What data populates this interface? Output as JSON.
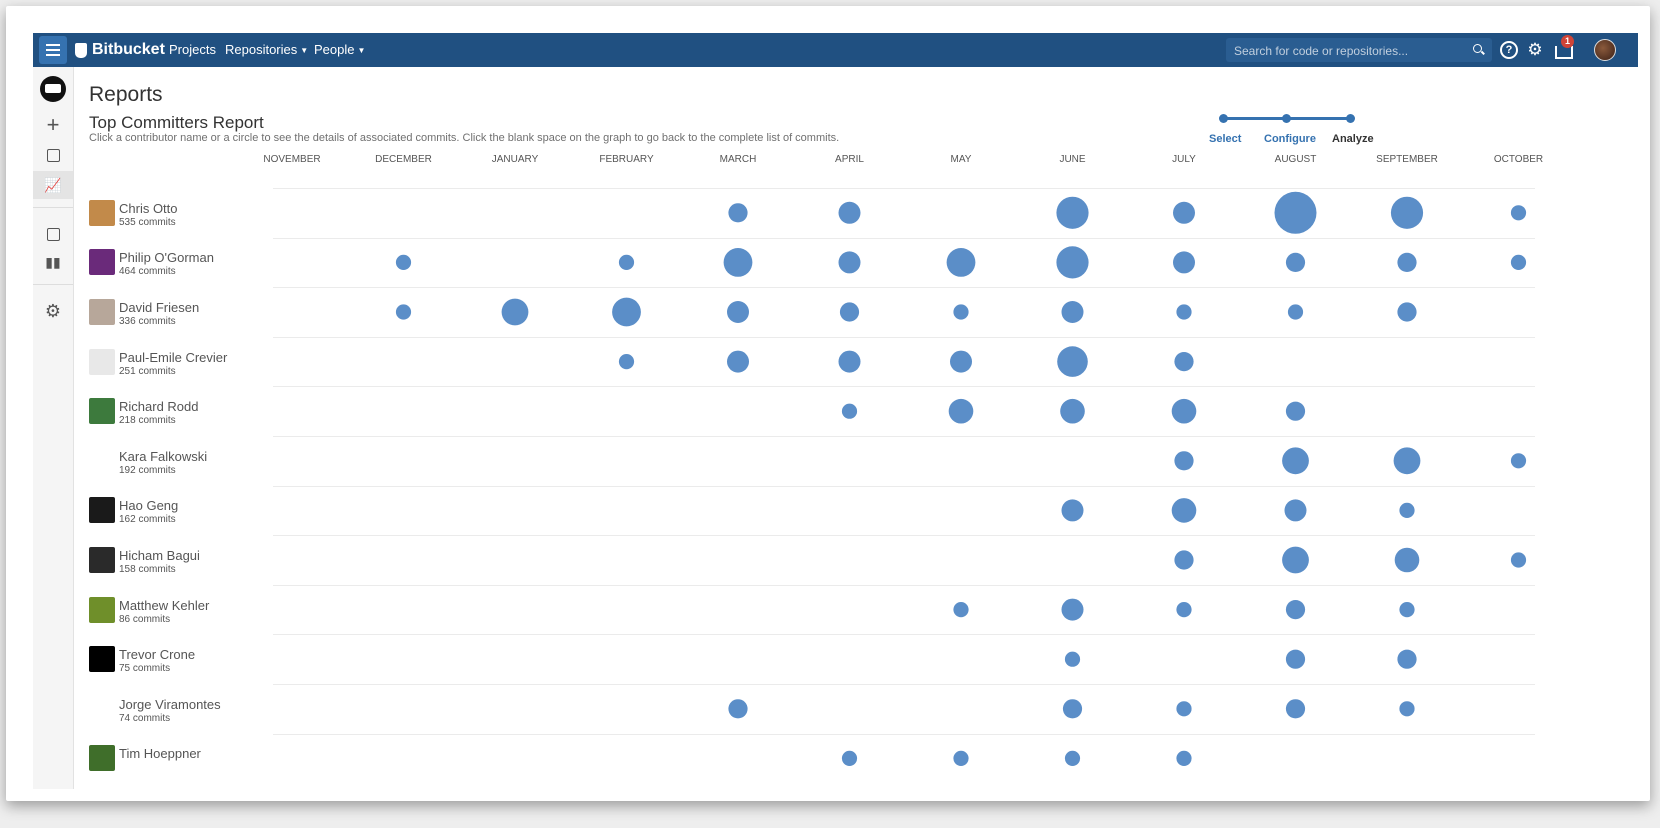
{
  "topbar": {
    "logo_text": "Bitbucket",
    "nav": {
      "projects": "Projects",
      "repositories": "Repositories",
      "people": "People"
    },
    "search_placeholder": "Search for code or repositories...",
    "notification_count": "1",
    "brand_color": "#205081"
  },
  "sidebar": {
    "items": [
      "repository-avatar",
      "create-icon",
      "pull-request-icon",
      "reports-icon",
      "document-icon",
      "bar-chart-icon",
      "settings-icon"
    ]
  },
  "page": {
    "heading": "Reports",
    "report_title": "Top Committers Report",
    "description": "Click a contributor name or a circle to see the details of associated commits. Click the blank space on the graph to go back to the complete list of commits."
  },
  "wizard": {
    "steps": [
      "Select",
      "Configure",
      "Analyze"
    ],
    "current": "Analyze"
  },
  "chart_data": {
    "type": "scatter",
    "bubble_color": "#5b8ec8",
    "months": [
      "NOVEMBER",
      "DECEMBER",
      "JANUARY",
      "FEBRUARY",
      "MARCH",
      "APRIL",
      "MAY",
      "JUNE",
      "JULY",
      "AUGUST",
      "SEPTEMBER",
      "OCTOBER"
    ],
    "contributors": [
      {
        "name": "Chris Otto",
        "commits_label": "535 commits",
        "avatar_color": "#c28a4a",
        "monthly": [
          0,
          0,
          0,
          0,
          2,
          3,
          0,
          8,
          3,
          15,
          8,
          1
        ]
      },
      {
        "name": "Philip O'Gorman",
        "commits_label": "464 commits",
        "avatar_color": "#6a2a7a",
        "monthly": [
          0,
          1,
          0,
          1,
          6,
          3,
          6,
          8,
          3,
          2,
          2,
          1
        ]
      },
      {
        "name": "David Friesen",
        "commits_label": "336 commits",
        "avatar_color": "#b7a79a",
        "monthly": [
          0,
          1,
          5,
          6,
          3,
          2,
          1,
          3,
          1,
          1,
          2,
          0
        ]
      },
      {
        "name": "Paul-Emile Crevier",
        "commits_label": "251 commits",
        "avatar_color": "#e8e8e8",
        "monthly": [
          0,
          0,
          0,
          1,
          3,
          3,
          3,
          7,
          2,
          0,
          0,
          0
        ]
      },
      {
        "name": "Richard Rodd",
        "commits_label": "218 commits",
        "avatar_color": "#3d7a3d",
        "monthly": [
          0,
          0,
          0,
          0,
          0,
          1,
          4,
          4,
          4,
          2,
          0,
          0
        ]
      },
      {
        "name": "Kara Falkowski",
        "commits_label": "192 commits",
        "avatar_color": "#ffffff",
        "monthly": [
          0,
          0,
          0,
          0,
          0,
          0,
          0,
          0,
          2,
          5,
          5,
          1
        ]
      },
      {
        "name": "Hao Geng",
        "commits_label": "162 commits",
        "avatar_color": "#1a1a1a",
        "monthly": [
          0,
          0,
          0,
          0,
          0,
          0,
          0,
          3,
          4,
          3,
          1,
          0
        ]
      },
      {
        "name": "Hicham Bagui",
        "commits_label": "158 commits",
        "avatar_color": "#2a2a2a",
        "monthly": [
          0,
          0,
          0,
          0,
          0,
          0,
          0,
          0,
          2,
          5,
          4,
          1
        ]
      },
      {
        "name": "Matthew Kehler",
        "commits_label": "86 commits",
        "avatar_color": "#6f8f2a",
        "monthly": [
          0,
          0,
          0,
          0,
          0,
          0,
          1,
          3,
          1,
          2,
          1,
          0
        ]
      },
      {
        "name": "Trevor Crone",
        "commits_label": "75 commits",
        "avatar_color": "#000000",
        "monthly": [
          0,
          0,
          0,
          0,
          0,
          0,
          0,
          1,
          0,
          2,
          2,
          0
        ]
      },
      {
        "name": "Jorge Viramontes",
        "commits_label": "74 commits",
        "avatar_color": "#ffffff",
        "monthly": [
          0,
          0,
          0,
          0,
          2,
          0,
          0,
          2,
          1,
          2,
          1,
          0
        ]
      },
      {
        "name": "Tim Hoeppner",
        "commits_label": "",
        "avatar_color": "#3f6e2a",
        "monthly": [
          0,
          0,
          0,
          0,
          0,
          1,
          1,
          1,
          1,
          0,
          0,
          0
        ]
      }
    ]
  }
}
